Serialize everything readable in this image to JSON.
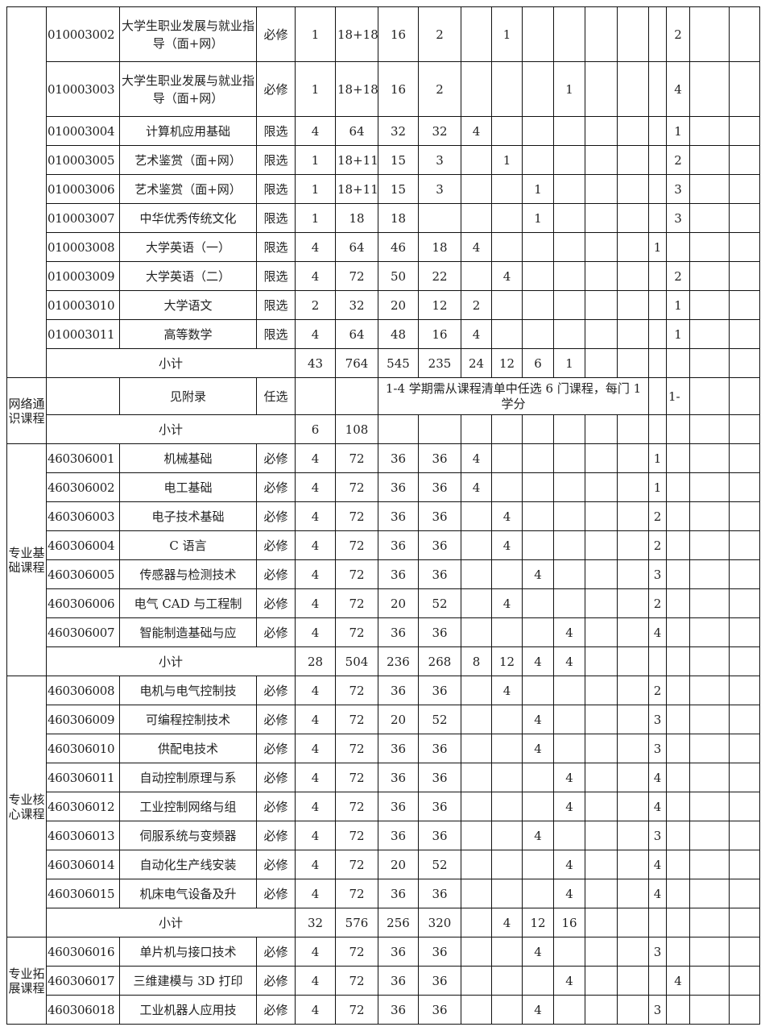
{
  "table": {
    "sections": [
      {
        "rows": [
          {
            "code": "010003002",
            "name": "大学生职业发展与就业指导（面+网）",
            "type": "必修",
            "credits": 1,
            "hours": "18+18",
            "theory": 16,
            "practice": 2,
            "semesters": [
              null,
              1,
              null,
              null,
              null,
              null
            ],
            "assessment": [
              null,
              2,
              null,
              null
            ]
          },
          {
            "code": "010003003",
            "name": "大学生职业发展与就业指导（面+网）",
            "type": "必修",
            "credits": 1,
            "hours": "18+18",
            "theory": 16,
            "practice": 2,
            "semesters": [
              null,
              null,
              null,
              1,
              null,
              null
            ],
            "assessment": [
              null,
              4,
              null,
              null
            ]
          },
          {
            "code": "010003004",
            "name": "计算机应用基础",
            "type": "限选",
            "credits": 4,
            "hours": 64,
            "theory": 32,
            "practice": 32,
            "semesters": [
              4,
              null,
              null,
              null,
              null,
              null
            ],
            "assessment": [
              null,
              1,
              null,
              null
            ]
          },
          {
            "code": "010003005",
            "name": "艺术鉴赏（面+网）",
            "type": "限选",
            "credits": 1,
            "hours": "18+11",
            "theory": 15,
            "practice": 3,
            "semesters": [
              null,
              1,
              null,
              null,
              null,
              null
            ],
            "assessment": [
              null,
              2,
              null,
              null
            ]
          },
          {
            "code": "010003006",
            "name": "艺术鉴赏（面+网）",
            "type": "限选",
            "credits": 1,
            "hours": "18+11",
            "theory": 15,
            "practice": 3,
            "semesters": [
              null,
              null,
              1,
              null,
              null,
              null
            ],
            "assessment": [
              null,
              3,
              null,
              null
            ]
          },
          {
            "code": "010003007",
            "name": "中华优秀传统文化",
            "type": "限选",
            "credits": 1,
            "hours": 18,
            "theory": 18,
            "practice": null,
            "semesters": [
              null,
              null,
              1,
              null,
              null,
              null
            ],
            "assessment": [
              null,
              3,
              null,
              null
            ]
          },
          {
            "code": "010003008",
            "name": "大学英语（一）",
            "type": "限选",
            "credits": 4,
            "hours": 64,
            "theory": 46,
            "practice": 18,
            "semesters": [
              4,
              null,
              null,
              null,
              null,
              null
            ],
            "assessment": [
              1,
              null,
              null,
              null
            ]
          },
          {
            "code": "010003009",
            "name": "大学英语（二）",
            "type": "限选",
            "credits": 4,
            "hours": 72,
            "theory": 50,
            "practice": 22,
            "semesters": [
              null,
              4,
              null,
              null,
              null,
              null
            ],
            "assessment": [
              null,
              2,
              null,
              null
            ]
          },
          {
            "code": "010003010",
            "name": "大学语文",
            "type": "限选",
            "credits": 2,
            "hours": 32,
            "theory": 20,
            "practice": 12,
            "semesters": [
              2,
              null,
              null,
              null,
              null,
              null
            ],
            "assessment": [
              null,
              1,
              null,
              null
            ]
          },
          {
            "code": "010003011",
            "name": "高等数学",
            "type": "限选",
            "credits": 4,
            "hours": 64,
            "theory": 48,
            "practice": 16,
            "semesters": [
              4,
              null,
              null,
              null,
              null,
              null
            ],
            "assessment": [
              null,
              1,
              null,
              null
            ]
          }
        ],
        "subtotal": {
          "label": "小计",
          "credits": 43,
          "hours": 764,
          "theory": 545,
          "practice": 235,
          "semesters": [
            24,
            12,
            6,
            1,
            null,
            null
          ]
        }
      },
      {
        "category": "网络通识课程",
        "rows": [
          {
            "code": null,
            "name": "见附录",
            "type": "任选",
            "credits": null,
            "hours": null,
            "note": "1-4 学期需从课程清单中任选 6 门课程，每门 1 学分",
            "assessment": [
              null,
              "1-",
              null,
              null
            ]
          }
        ],
        "subtotal": {
          "label": "小计",
          "credits": 6,
          "hours": 108,
          "theory": null,
          "practice": null,
          "semesters": [
            null,
            null,
            null,
            null,
            null,
            null
          ]
        }
      },
      {
        "category": "专业基础课程",
        "rows": [
          {
            "code": "460306001",
            "name": "机械基础",
            "type": "必修",
            "credits": 4,
            "hours": 72,
            "theory": 36,
            "practice": 36,
            "semesters": [
              4,
              null,
              null,
              null,
              null,
              null
            ],
            "assessment": [
              1,
              null,
              null,
              null
            ]
          },
          {
            "code": "460306002",
            "name": "电工基础",
            "type": "必修",
            "credits": 4,
            "hours": 72,
            "theory": 36,
            "practice": 36,
            "semesters": [
              4,
              null,
              null,
              null,
              null,
              null
            ],
            "assessment": [
              1,
              null,
              null,
              null
            ]
          },
          {
            "code": "460306003",
            "name": "电子技术基础",
            "type": "必修",
            "credits": 4,
            "hours": 72,
            "theory": 36,
            "practice": 36,
            "semesters": [
              null,
              4,
              null,
              null,
              null,
              null
            ],
            "assessment": [
              2,
              null,
              null,
              null
            ]
          },
          {
            "code": "460306004",
            "name": "C 语言",
            "type": "必修",
            "credits": 4,
            "hours": 72,
            "theory": 36,
            "practice": 36,
            "semesters": [
              null,
              4,
              null,
              null,
              null,
              null
            ],
            "assessment": [
              2,
              null,
              null,
              null
            ]
          },
          {
            "code": "460306005",
            "name": "传感器与检测技术",
            "type": "必修",
            "credits": 4,
            "hours": 72,
            "theory": 36,
            "practice": 36,
            "semesters": [
              null,
              null,
              4,
              null,
              null,
              null
            ],
            "assessment": [
              3,
              null,
              null,
              null
            ]
          },
          {
            "code": "460306006",
            "name": "电气 CAD 与工程制",
            "type": "必修",
            "credits": 4,
            "hours": 72,
            "theory": 20,
            "practice": 52,
            "semesters": [
              null,
              4,
              null,
              null,
              null,
              null
            ],
            "assessment": [
              2,
              null,
              null,
              null
            ]
          },
          {
            "code": "460306007",
            "name": "智能制造基础与应",
            "type": "必修",
            "credits": 4,
            "hours": 72,
            "theory": 36,
            "practice": 36,
            "semesters": [
              null,
              null,
              null,
              4,
              null,
              null
            ],
            "assessment": [
              4,
              null,
              null,
              null
            ]
          }
        ],
        "subtotal": {
          "label": "小计",
          "credits": 28,
          "hours": 504,
          "theory": 236,
          "practice": 268,
          "semesters": [
            8,
            12,
            4,
            4,
            null,
            null
          ]
        }
      },
      {
        "category": "专业核心课程",
        "rows": [
          {
            "code": "460306008",
            "name": "电机与电气控制技",
            "type": "必修",
            "credits": 4,
            "hours": 72,
            "theory": 36,
            "practice": 36,
            "semesters": [
              null,
              4,
              null,
              null,
              null,
              null
            ],
            "assessment": [
              2,
              null,
              null,
              null
            ]
          },
          {
            "code": "460306009",
            "name": "可编程控制技术",
            "type": "必修",
            "credits": 4,
            "hours": 72,
            "theory": 20,
            "practice": 52,
            "semesters": [
              null,
              null,
              4,
              null,
              null,
              null
            ],
            "assessment": [
              3,
              null,
              null,
              null
            ]
          },
          {
            "code": "460306010",
            "name": "供配电技术",
            "type": "必修",
            "credits": 4,
            "hours": 72,
            "theory": 36,
            "practice": 36,
            "semesters": [
              null,
              null,
              4,
              null,
              null,
              null
            ],
            "assessment": [
              3,
              null,
              null,
              null
            ]
          },
          {
            "code": "460306011",
            "name": "自动控制原理与系",
            "type": "必修",
            "credits": 4,
            "hours": 72,
            "theory": 36,
            "practice": 36,
            "semesters": [
              null,
              null,
              null,
              4,
              null,
              null
            ],
            "assessment": [
              4,
              null,
              null,
              null
            ]
          },
          {
            "code": "460306012",
            "name": "工业控制网络与组",
            "type": "必修",
            "credits": 4,
            "hours": 72,
            "theory": 36,
            "practice": 36,
            "semesters": [
              null,
              null,
              null,
              4,
              null,
              null
            ],
            "assessment": [
              4,
              null,
              null,
              null
            ]
          },
          {
            "code": "460306013",
            "name": "伺服系统与变频器",
            "type": "必修",
            "credits": 4,
            "hours": 72,
            "theory": 36,
            "practice": 36,
            "semesters": [
              null,
              null,
              4,
              null,
              null,
              null
            ],
            "assessment": [
              3,
              null,
              null,
              null
            ]
          },
          {
            "code": "460306014",
            "name": "自动化生产线安装",
            "type": "必修",
            "credits": 4,
            "hours": 72,
            "theory": 20,
            "practice": 52,
            "semesters": [
              null,
              null,
              null,
              4,
              null,
              null
            ],
            "assessment": [
              4,
              null,
              null,
              null
            ]
          },
          {
            "code": "460306015",
            "name": "机床电气设备及升",
            "type": "必修",
            "credits": 4,
            "hours": 72,
            "theory": 36,
            "practice": 36,
            "semesters": [
              null,
              null,
              null,
              4,
              null,
              null
            ],
            "assessment": [
              4,
              null,
              null,
              null
            ]
          }
        ],
        "subtotal": {
          "label": "小计",
          "credits": 32,
          "hours": 576,
          "theory": 256,
          "practice": 320,
          "semesters": [
            null,
            4,
            12,
            16,
            null,
            null
          ]
        }
      },
      {
        "category": "专业拓展课程",
        "rows": [
          {
            "code": "460306016",
            "name": "单片机与接口技术",
            "type": "必修",
            "credits": 4,
            "hours": 72,
            "theory": 36,
            "practice": 36,
            "semesters": [
              null,
              null,
              4,
              null,
              null,
              null
            ],
            "assessment": [
              3,
              null,
              null,
              null
            ]
          },
          {
            "code": "460306017",
            "name": "三维建模与 3D 打印",
            "type": "必修",
            "credits": 4,
            "hours": 72,
            "theory": 36,
            "practice": 36,
            "semesters": [
              null,
              null,
              null,
              4,
              null,
              null
            ],
            "assessment": [
              null,
              4,
              null,
              null
            ]
          },
          {
            "code": "460306018",
            "name": "工业机器人应用技",
            "type": "必修",
            "credits": 4,
            "hours": 72,
            "theory": 36,
            "practice": 36,
            "semesters": [
              null,
              null,
              4,
              null,
              null,
              null
            ],
            "assessment": [
              3,
              null,
              null,
              null
            ]
          }
        ]
      }
    ]
  }
}
